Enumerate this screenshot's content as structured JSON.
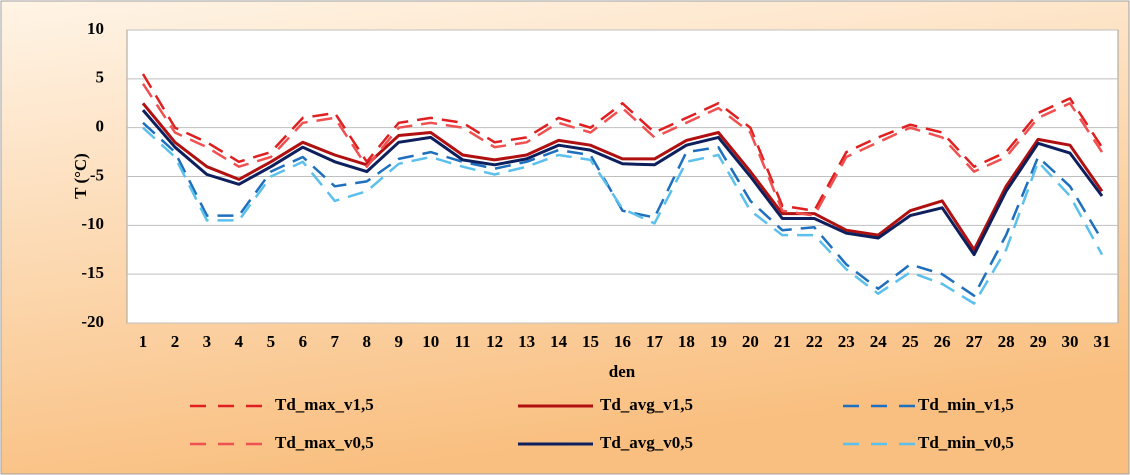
{
  "chart_data": {
    "type": "line",
    "ylabel": "T (°C)",
    "xlabel": "den",
    "categories": [
      "1",
      "2",
      "3",
      "4",
      "5",
      "6",
      "7",
      "8",
      "9",
      "10",
      "11",
      "12",
      "13",
      "14",
      "15",
      "16",
      "17",
      "18",
      "19",
      "20",
      "21",
      "22",
      "23",
      "24",
      "25",
      "26",
      "27",
      "28",
      "29",
      "30",
      "31"
    ],
    "ylim": [
      -20,
      10
    ],
    "yticks": [
      -20,
      -15,
      -10,
      -5,
      0,
      5,
      10
    ],
    "grid": true,
    "series": [
      {
        "name": "Td_max_v1,5",
        "color": "#e02020",
        "dashed": true,
        "values": [
          5.5,
          0,
          -1.5,
          -3.5,
          -2.5,
          1,
          1.5,
          -3.5,
          0.5,
          1,
          0.5,
          -1.5,
          -1,
          1,
          0,
          2.5,
          -0.5,
          1,
          2.5,
          0,
          -8,
          -8.5,
          -2.5,
          -1,
          0.3,
          -0.5,
          -4,
          -2.5,
          1.5,
          3,
          -2
        ]
      },
      {
        "name": "Td_avg_v1,5",
        "color": "#b01010",
        "dashed": false,
        "values": [
          2.5,
          -1.5,
          -4,
          -5.3,
          -3.5,
          -1.5,
          -2.8,
          -3.8,
          -0.8,
          -0.5,
          -2.8,
          -3.3,
          -2.8,
          -1.3,
          -1.8,
          -3.2,
          -3.2,
          -1.3,
          -0.5,
          -4.5,
          -8.8,
          -8.8,
          -10.5,
          -11,
          -8.5,
          -7.5,
          -12.5,
          -6,
          -1.2,
          -1.8,
          -6.5
        ]
      },
      {
        "name": "Td_min_v1,5",
        "color": "#1f6fbf",
        "dashed": true,
        "values": [
          0.5,
          -2.5,
          -9,
          -9,
          -4.5,
          -3,
          -6,
          -5.5,
          -3.2,
          -2.5,
          -3.5,
          -4.2,
          -3.5,
          -2.3,
          -2.8,
          -8.5,
          -9.2,
          -2.5,
          -2,
          -7.5,
          -10.5,
          -10.2,
          -14,
          -16.5,
          -14,
          -15,
          -17.2,
          -11,
          -3,
          -6,
          -11.5
        ]
      },
      {
        "name": "Td_max_v0,5",
        "color": "#f05050",
        "dashed": true,
        "values": [
          4.5,
          -0.5,
          -2,
          -4,
          -3,
          0.5,
          1,
          -4,
          0,
          0.5,
          0,
          -2,
          -1.5,
          0.5,
          -0.5,
          2,
          -1,
          0.5,
          2,
          -0.5,
          -8.5,
          -9,
          -3,
          -1.5,
          0,
          -1,
          -4.5,
          -3,
          1,
          2.5,
          -2.5
        ]
      },
      {
        "name": "Td_avg_v0,5",
        "color": "#0d1f5c",
        "dashed": false,
        "values": [
          1.8,
          -2,
          -4.8,
          -5.8,
          -4,
          -2,
          -3.5,
          -4.5,
          -1.5,
          -1,
          -3.3,
          -3.8,
          -3.2,
          -1.8,
          -2.3,
          -3.7,
          -3.8,
          -1.8,
          -1,
          -5,
          -9.3,
          -9.3,
          -10.8,
          -11.3,
          -9,
          -8.2,
          -13,
          -6.5,
          -1.6,
          -2.6,
          -7
        ]
      },
      {
        "name": "Td_min_v0,5",
        "color": "#5bc0eb",
        "dashed": true,
        "values": [
          0,
          -3,
          -9.5,
          -9.5,
          -5,
          -3.5,
          -7.5,
          -6.5,
          -3.7,
          -3,
          -4,
          -4.8,
          -4,
          -2.8,
          -3.3,
          -8.3,
          -9.8,
          -3.5,
          -2.8,
          -8.5,
          -11,
          -11,
          -14.5,
          -17,
          -14.8,
          -16,
          -18,
          -12.5,
          -3.5,
          -7,
          -13
        ]
      }
    ]
  }
}
